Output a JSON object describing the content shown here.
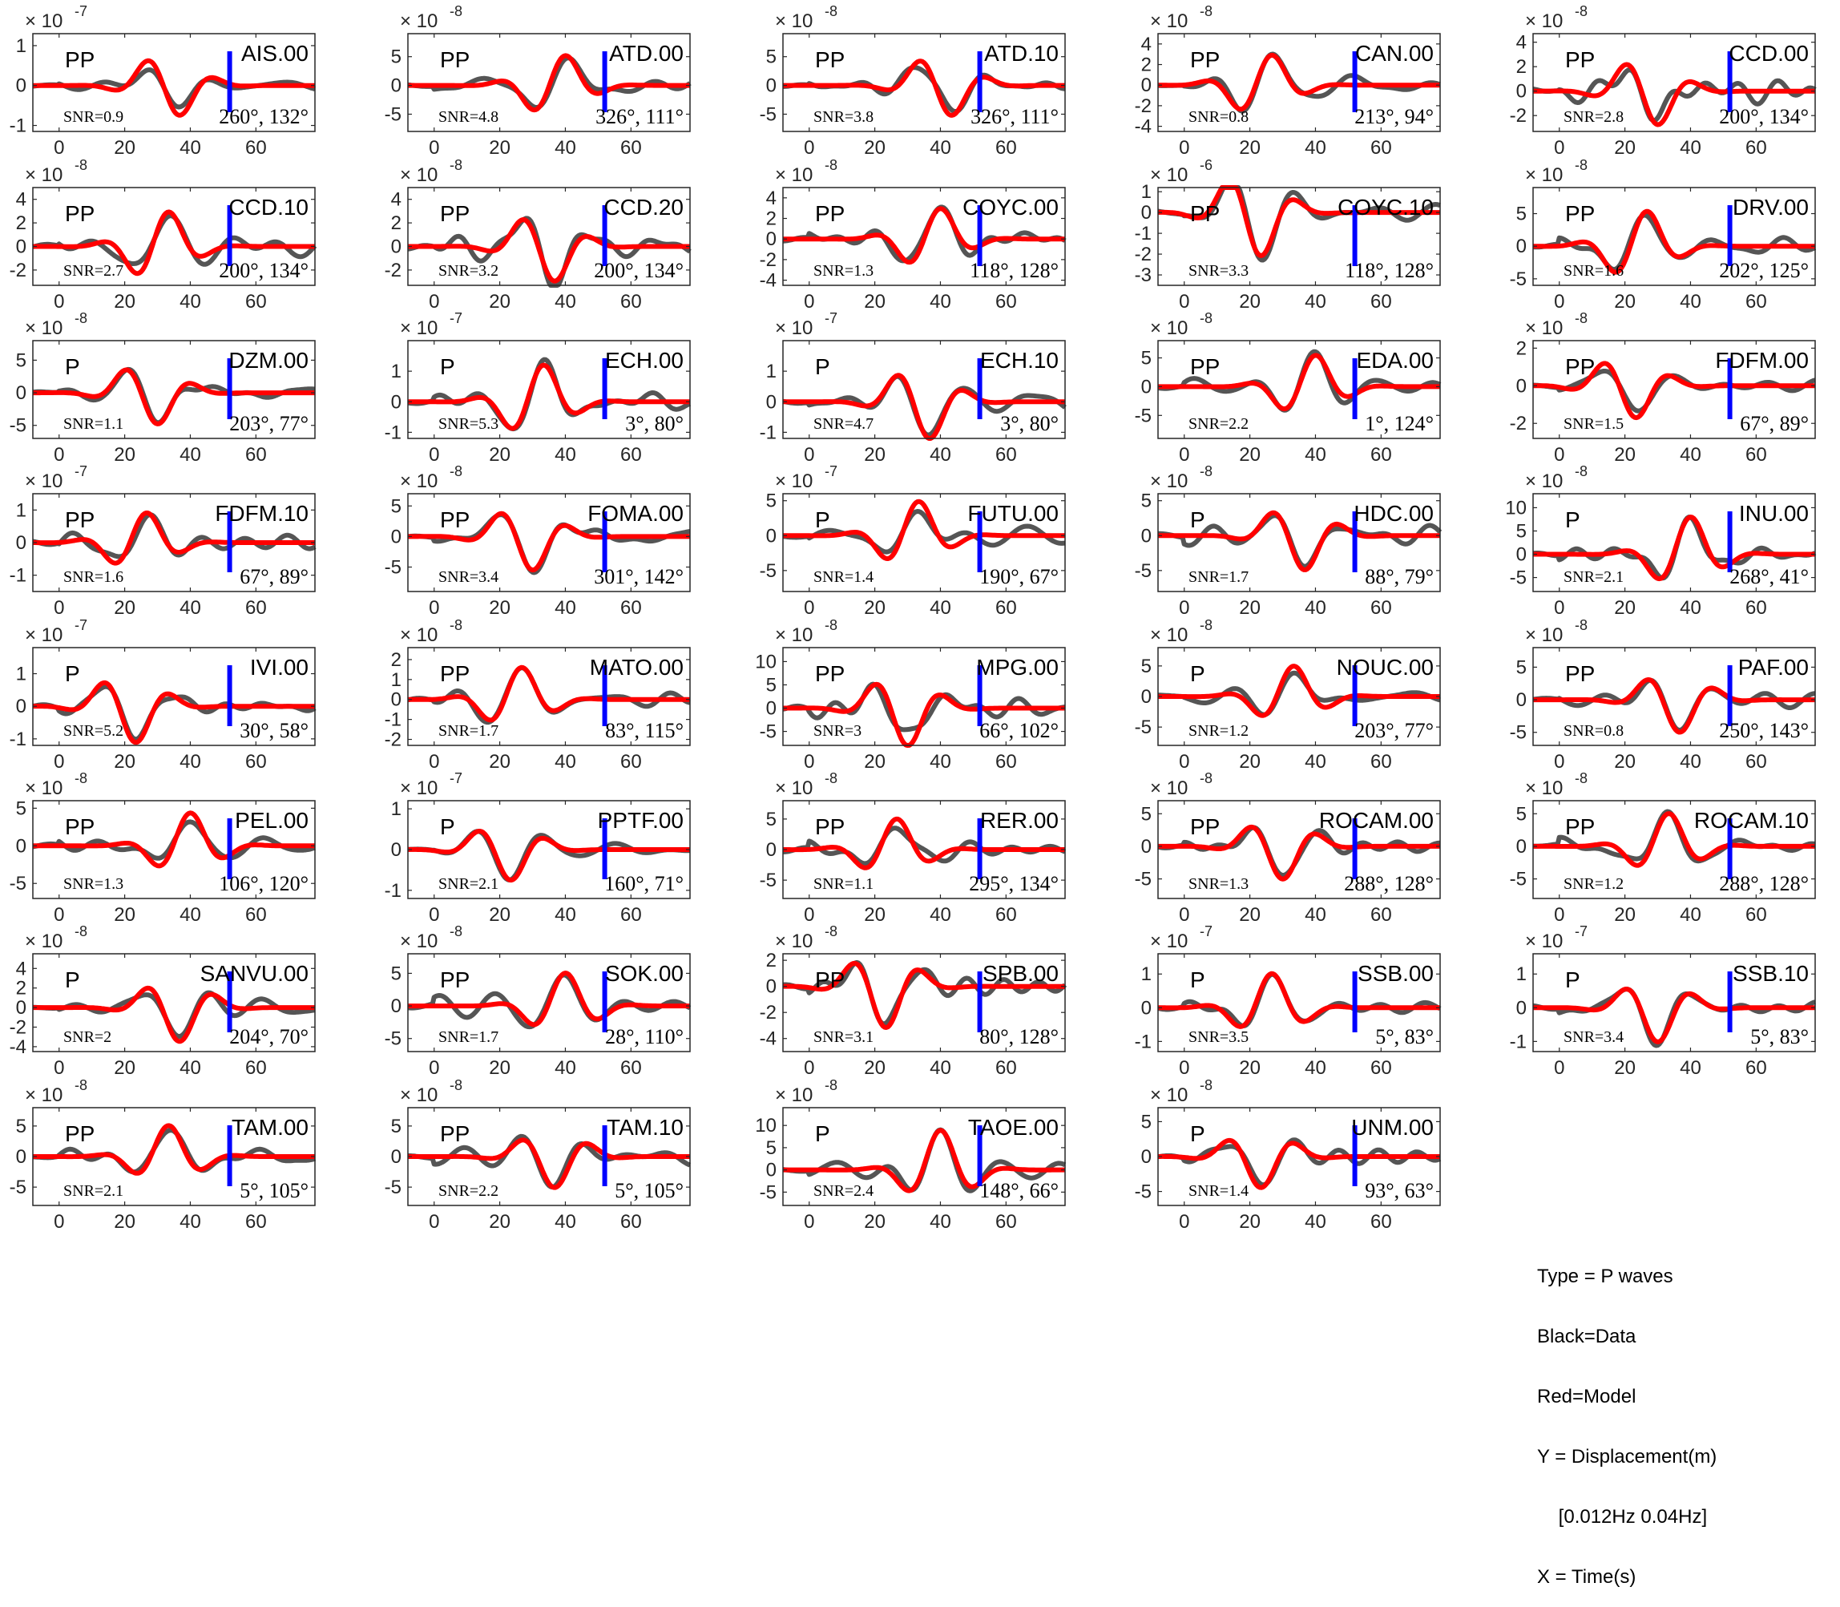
{
  "legend": {
    "lines": [
      "Type = P waves",
      "Black=Data",
      "Red=Model",
      "Y = Displacement(m)",
      "    [0.012Hz 0.04Hz]",
      "X = Time(s)"
    ]
  },
  "colors": {
    "data": "#555555",
    "model": "#ff0000",
    "marker": "#0000ff",
    "axis": "#262626",
    "tick_text": "#262626"
  },
  "chart_data": [
    {
      "type": "line",
      "station": "AIS.00",
      "phase": "PP",
      "snr": "SNR=0.9",
      "angles": "260°, 132°",
      "exp": "-7",
      "yticks": [
        -1,
        0,
        1
      ],
      "ylim": [
        -1.15,
        1.3
      ],
      "xticks": [
        0,
        20,
        40,
        60
      ],
      "xlim": [
        -8,
        78
      ],
      "marker_x": 52
    },
    {
      "type": "line",
      "station": "ATD.00",
      "phase": "PP",
      "snr": "SNR=4.8",
      "angles": "326°, 111°",
      "exp": "-8",
      "yticks": [
        -5,
        0,
        5
      ],
      "ylim": [
        -8,
        9
      ],
      "xticks": [
        0,
        20,
        40,
        60
      ],
      "xlim": [
        -8,
        78
      ],
      "marker_x": 52
    },
    {
      "type": "line",
      "station": "ATD.10",
      "phase": "PP",
      "snr": "SNR=3.8",
      "angles": "326°, 111°",
      "exp": "-8",
      "yticks": [
        -5,
        0,
        5
      ],
      "ylim": [
        -8,
        9
      ],
      "xticks": [
        0,
        20,
        40,
        60
      ],
      "xlim": [
        -8,
        78
      ],
      "marker_x": 52
    },
    {
      "type": "line",
      "station": "CAN.00",
      "phase": "PP",
      "snr": "SNR=0.8",
      "angles": "213°, 94°",
      "exp": "-8",
      "yticks": [
        -4,
        -2,
        0,
        2,
        4
      ],
      "ylim": [
        -4.5,
        5
      ],
      "xticks": [
        0,
        20,
        40,
        60
      ],
      "xlim": [
        -8,
        78
      ],
      "marker_x": 52
    },
    {
      "type": "line",
      "station": "CCD.00",
      "phase": "PP",
      "snr": "SNR=2.8",
      "angles": "200°, 134°",
      "exp": "-8",
      "yticks": [
        -2,
        0,
        2,
        4
      ],
      "ylim": [
        -3.3,
        4.7
      ],
      "xticks": [
        0,
        20,
        40,
        60
      ],
      "xlim": [
        -8,
        78
      ],
      "marker_x": 52
    },
    {
      "type": "line",
      "station": "CCD.10",
      "phase": "PP",
      "snr": "SNR=2.7",
      "angles": "200°, 134°",
      "exp": "-8",
      "yticks": [
        -2,
        0,
        2,
        4
      ],
      "ylim": [
        -3.3,
        5
      ],
      "xticks": [
        0,
        20,
        40,
        60
      ],
      "xlim": [
        -8,
        78
      ],
      "marker_x": 52
    },
    {
      "type": "line",
      "station": "CCD.20",
      "phase": "PP",
      "snr": "SNR=3.2",
      "angles": "200°, 134°",
      "exp": "-8",
      "yticks": [
        -2,
        0,
        2,
        4
      ],
      "ylim": [
        -3.3,
        5
      ],
      "xticks": [
        0,
        20,
        40,
        60
      ],
      "xlim": [
        -8,
        78
      ],
      "marker_x": 52
    },
    {
      "type": "line",
      "station": "COYC.00",
      "phase": "PP",
      "snr": "SNR=1.3",
      "angles": "118°, 128°",
      "exp": "-8",
      "yticks": [
        -4,
        -2,
        0,
        2,
        4
      ],
      "ylim": [
        -4.5,
        5
      ],
      "xticks": [
        0,
        20,
        40,
        60
      ],
      "xlim": [
        -8,
        78
      ],
      "marker_x": 52
    },
    {
      "type": "line",
      "station": "COYC.10",
      "phase": "PP",
      "snr": "SNR=3.3",
      "angles": "118°, 128°",
      "exp": "-6",
      "yticks": [
        -3,
        -2,
        -1,
        0,
        1
      ],
      "ylim": [
        -3.5,
        1.2
      ],
      "xticks": [
        0,
        20,
        40,
        60
      ],
      "xlim": [
        -8,
        78
      ],
      "marker_x": 52
    },
    {
      "type": "line",
      "station": "DRV.00",
      "phase": "PP",
      "snr": "SNR=1.6",
      "angles": "202°, 125°",
      "exp": "-8",
      "yticks": [
        -5,
        0,
        5
      ],
      "ylim": [
        -6,
        9
      ],
      "xticks": [
        0,
        20,
        40,
        60
      ],
      "xlim": [
        -8,
        78
      ],
      "marker_x": 52
    },
    {
      "type": "line",
      "station": "DZM.00",
      "phase": "P",
      "snr": "SNR=1.1",
      "angles": "203°, 77°",
      "exp": "-8",
      "yticks": [
        -5,
        0,
        5
      ],
      "ylim": [
        -7,
        8
      ],
      "xticks": [
        0,
        20,
        40,
        60
      ],
      "xlim": [
        -8,
        78
      ],
      "marker_x": 52
    },
    {
      "type": "line",
      "station": "ECH.00",
      "phase": "P",
      "snr": "SNR=5.3",
      "angles": "3°, 80°",
      "exp": "-7",
      "yticks": [
        -1,
        0,
        1
      ],
      "ylim": [
        -1.2,
        2
      ],
      "xticks": [
        0,
        20,
        40,
        60
      ],
      "xlim": [
        -8,
        78
      ],
      "marker_x": 52
    },
    {
      "type": "line",
      "station": "ECH.10",
      "phase": "P",
      "snr": "SNR=4.7",
      "angles": "3°, 80°",
      "exp": "-7",
      "yticks": [
        -1,
        0,
        1
      ],
      "ylim": [
        -1.2,
        2
      ],
      "xticks": [
        0,
        20,
        40,
        60
      ],
      "xlim": [
        -8,
        78
      ],
      "marker_x": 52
    },
    {
      "type": "line",
      "station": "EDA.00",
      "phase": "PP",
      "snr": "SNR=2.2",
      "angles": "1°, 124°",
      "exp": "-8",
      "yticks": [
        -5,
        0,
        5
      ],
      "ylim": [
        -9,
        8
      ],
      "xticks": [
        0,
        20,
        40,
        60
      ],
      "xlim": [
        -8,
        78
      ],
      "marker_x": 52
    },
    {
      "type": "line",
      "station": "FDFM.00",
      "phase": "PP",
      "snr": "SNR=1.5",
      "angles": "67°, 89°",
      "exp": "-8",
      "yticks": [
        -2,
        0,
        2
      ],
      "ylim": [
        -2.8,
        2.4
      ],
      "xticks": [
        0,
        20,
        40,
        60
      ],
      "xlim": [
        -8,
        78
      ],
      "marker_x": 52
    },
    {
      "type": "line",
      "station": "FDFM.10",
      "phase": "PP",
      "snr": "SNR=1.6",
      "angles": "67°, 89°",
      "exp": "-7",
      "yticks": [
        -1,
        0,
        1
      ],
      "ylim": [
        -1.5,
        1.5
      ],
      "xticks": [
        0,
        20,
        40,
        60
      ],
      "xlim": [
        -8,
        78
      ],
      "marker_x": 52
    },
    {
      "type": "line",
      "station": "FOMA.00",
      "phase": "PP",
      "snr": "SNR=3.4",
      "angles": "301°, 142°",
      "exp": "-8",
      "yticks": [
        -5,
        0,
        5
      ],
      "ylim": [
        -9,
        7
      ],
      "xticks": [
        0,
        20,
        40,
        60
      ],
      "xlim": [
        -8,
        78
      ],
      "marker_x": 52
    },
    {
      "type": "line",
      "station": "FUTU.00",
      "phase": "P",
      "snr": "SNR=1.4",
      "angles": "190°, 67°",
      "exp": "-7",
      "yticks": [
        -5,
        0,
        5
      ],
      "ylim": [
        -8,
        6
      ],
      "xticks": [
        0,
        20,
        40,
        60
      ],
      "xlim": [
        -8,
        78
      ],
      "marker_x": 52
    },
    {
      "type": "line",
      "station": "HDC.00",
      "phase": "P",
      "snr": "SNR=1.7",
      "angles": "88°, 79°",
      "exp": "-8",
      "yticks": [
        -5,
        0,
        5
      ],
      "ylim": [
        -8,
        6
      ],
      "xticks": [
        0,
        20,
        40,
        60
      ],
      "xlim": [
        -8,
        78
      ],
      "marker_x": 52
    },
    {
      "type": "line",
      "station": "INU.00",
      "phase": "P",
      "snr": "SNR=2.1",
      "angles": "268°, 41°",
      "exp": "-8",
      "yticks": [
        -5,
        0,
        5,
        10
      ],
      "ylim": [
        -8,
        13
      ],
      "xticks": [
        0,
        20,
        40,
        60
      ],
      "xlim": [
        -8,
        78
      ],
      "marker_x": 52
    },
    {
      "type": "line",
      "station": "IVI.00",
      "phase": "P",
      "snr": "SNR=5.2",
      "angles": "30°, 58°",
      "exp": "-7",
      "yticks": [
        -1,
        0,
        1
      ],
      "ylim": [
        -1.2,
        1.8
      ],
      "xticks": [
        0,
        20,
        40,
        60
      ],
      "xlim": [
        -8,
        78
      ],
      "marker_x": 52
    },
    {
      "type": "line",
      "station": "MATO.00",
      "phase": "PP",
      "snr": "SNR=1.7",
      "angles": "83°, 115°",
      "exp": "-8",
      "yticks": [
        -2,
        -1,
        0,
        1,
        2
      ],
      "ylim": [
        -2.3,
        2.6
      ],
      "xticks": [
        0,
        20,
        40,
        60
      ],
      "xlim": [
        -8,
        78
      ],
      "marker_x": 52
    },
    {
      "type": "line",
      "station": "MPG.00",
      "phase": "PP",
      "snr": "SNR=3",
      "angles": "66°, 102°",
      "exp": "-8",
      "yticks": [
        -5,
        0,
        5,
        10
      ],
      "ylim": [
        -8,
        13
      ],
      "xticks": [
        0,
        20,
        40,
        60
      ],
      "xlim": [
        -8,
        78
      ],
      "marker_x": 52
    },
    {
      "type": "line",
      "station": "NOUC.00",
      "phase": "P",
      "snr": "SNR=1.2",
      "angles": "203°, 77°",
      "exp": "-8",
      "yticks": [
        -5,
        0,
        5
      ],
      "ylim": [
        -8,
        8
      ],
      "xticks": [
        0,
        20,
        40,
        60
      ],
      "xlim": [
        -8,
        78
      ],
      "marker_x": 52
    },
    {
      "type": "line",
      "station": "PAF.00",
      "phase": "PP",
      "snr": "SNR=0.8",
      "angles": "250°, 143°",
      "exp": "-8",
      "yticks": [
        -5,
        0,
        5
      ],
      "ylim": [
        -7,
        8
      ],
      "xticks": [
        0,
        20,
        40,
        60
      ],
      "xlim": [
        -8,
        78
      ],
      "marker_x": 52
    },
    {
      "type": "line",
      "station": "PEL.00",
      "phase": "PP",
      "snr": "SNR=1.3",
      "angles": "106°, 120°",
      "exp": "-8",
      "yticks": [
        -5,
        0,
        5
      ],
      "ylim": [
        -7,
        6
      ],
      "xticks": [
        0,
        20,
        40,
        60
      ],
      "xlim": [
        -8,
        78
      ],
      "marker_x": 52
    },
    {
      "type": "line",
      "station": "PPTF.00",
      "phase": "P",
      "snr": "SNR=2.1",
      "angles": "160°, 71°",
      "exp": "-7",
      "yticks": [
        -1,
        0,
        1
      ],
      "ylim": [
        -1.2,
        1.2
      ],
      "xticks": [
        0,
        20,
        40,
        60
      ],
      "xlim": [
        -8,
        78
      ],
      "marker_x": 52
    },
    {
      "type": "line",
      "station": "RER.00",
      "phase": "PP",
      "snr": "SNR=1.1",
      "angles": "295°, 134°",
      "exp": "-8",
      "yticks": [
        -5,
        0,
        5
      ],
      "ylim": [
        -8,
        8
      ],
      "xticks": [
        0,
        20,
        40,
        60
      ],
      "xlim": [
        -8,
        78
      ],
      "marker_x": 52
    },
    {
      "type": "line",
      "station": "ROCAM.00",
      "phase": "PP",
      "snr": "SNR=1.3",
      "angles": "288°, 128°",
      "exp": "-8",
      "yticks": [
        -5,
        0,
        5
      ],
      "ylim": [
        -8,
        7
      ],
      "xticks": [
        0,
        20,
        40,
        60
      ],
      "xlim": [
        -8,
        78
      ],
      "marker_x": 52
    },
    {
      "type": "line",
      "station": "ROCAM.10",
      "phase": "PP",
      "snr": "SNR=1.2",
      "angles": "288°, 128°",
      "exp": "-8",
      "yticks": [
        -5,
        0,
        5
      ],
      "ylim": [
        -8,
        7
      ],
      "xticks": [
        0,
        20,
        40,
        60
      ],
      "xlim": [
        -8,
        78
      ],
      "marker_x": 52
    },
    {
      "type": "line",
      "station": "SANVU.00",
      "phase": "P",
      "snr": "SNR=2",
      "angles": "204°, 70°",
      "exp": "-8",
      "yticks": [
        -4,
        -2,
        0,
        2,
        4
      ],
      "ylim": [
        -4.5,
        5.5
      ],
      "xticks": [
        0,
        20,
        40,
        60
      ],
      "xlim": [
        -8,
        78
      ],
      "marker_x": 52
    },
    {
      "type": "line",
      "station": "SOK.00",
      "phase": "PP",
      "snr": "SNR=1.7",
      "angles": "28°, 110°",
      "exp": "-8",
      "yticks": [
        -5,
        0,
        5
      ],
      "ylim": [
        -7,
        8
      ],
      "xticks": [
        0,
        20,
        40,
        60
      ],
      "xlim": [
        -8,
        78
      ],
      "marker_x": 52
    },
    {
      "type": "line",
      "station": "SPB.00",
      "phase": "PP",
      "snr": "SNR=3.1",
      "angles": "80°, 128°",
      "exp": "-8",
      "yticks": [
        -4,
        -2,
        0,
        2
      ],
      "ylim": [
        -5,
        2.5
      ],
      "xticks": [
        0,
        20,
        40,
        60
      ],
      "xlim": [
        -8,
        78
      ],
      "marker_x": 52
    },
    {
      "type": "line",
      "station": "SSB.00",
      "phase": "P",
      "snr": "SNR=3.5",
      "angles": "5°, 83°",
      "exp": "-7",
      "yticks": [
        -1,
        0,
        1
      ],
      "ylim": [
        -1.3,
        1.6
      ],
      "xticks": [
        0,
        20,
        40,
        60
      ],
      "xlim": [
        -8,
        78
      ],
      "marker_x": 52
    },
    {
      "type": "line",
      "station": "SSB.10",
      "phase": "P",
      "snr": "SNR=3.4",
      "angles": "5°, 83°",
      "exp": "-7",
      "yticks": [
        -1,
        0,
        1
      ],
      "ylim": [
        -1.3,
        1.6
      ],
      "xticks": [
        0,
        20,
        40,
        60
      ],
      "xlim": [
        -8,
        78
      ],
      "marker_x": 52
    },
    {
      "type": "line",
      "station": "TAM.00",
      "phase": "PP",
      "snr": "SNR=2.1",
      "angles": "5°, 105°",
      "exp": "-8",
      "yticks": [
        -5,
        0,
        5
      ],
      "ylim": [
        -8,
        8
      ],
      "xticks": [
        0,
        20,
        40,
        60
      ],
      "xlim": [
        -8,
        78
      ],
      "marker_x": 52
    },
    {
      "type": "line",
      "station": "TAM.10",
      "phase": "PP",
      "snr": "SNR=2.2",
      "angles": "5°, 105°",
      "exp": "-8",
      "yticks": [
        -5,
        0,
        5
      ],
      "ylim": [
        -8,
        8
      ],
      "xticks": [
        0,
        20,
        40,
        60
      ],
      "xlim": [
        -8,
        78
      ],
      "marker_x": 52
    },
    {
      "type": "line",
      "station": "TAOE.00",
      "phase": "P",
      "snr": "SNR=2.4",
      "angles": "148°, 66°",
      "exp": "-8",
      "yticks": [
        -5,
        0,
        5,
        10
      ],
      "ylim": [
        -8,
        14
      ],
      "xticks": [
        0,
        20,
        40,
        60
      ],
      "xlim": [
        -8,
        78
      ],
      "marker_x": 52
    },
    {
      "type": "line",
      "station": "UNM.00",
      "phase": "P",
      "snr": "SNR=1.4",
      "angles": "93°, 63°",
      "exp": "-8",
      "yticks": [
        -5,
        0,
        5
      ],
      "ylim": [
        -7,
        7
      ],
      "xticks": [
        0,
        20,
        40,
        60
      ],
      "xlim": [
        -8,
        78
      ],
      "marker_x": 52
    }
  ]
}
